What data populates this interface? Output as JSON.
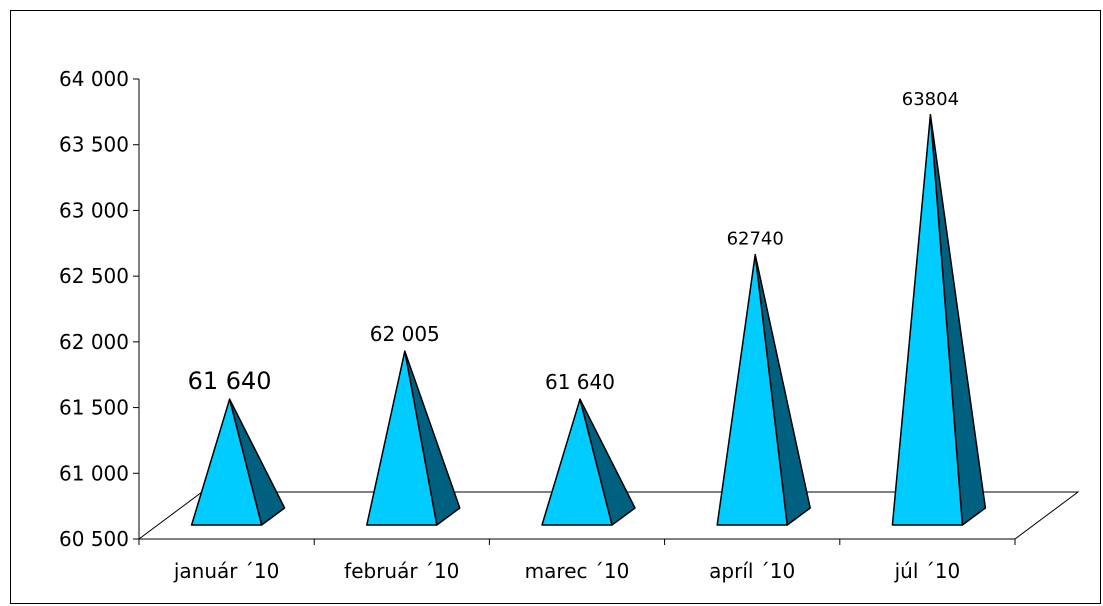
{
  "chart_data": {
    "type": "bar",
    "bar_shape": "pyramid-3d",
    "categories": [
      "január ´10",
      "február ´10",
      "marec ´10",
      "apríl ´10",
      "júl ´10"
    ],
    "values": [
      61640,
      62005,
      61640,
      62740,
      63804
    ],
    "data_labels": [
      "61 640",
      "62 005",
      "61 640",
      "62740",
      "63804"
    ],
    "y_ticks": [
      "60 500",
      "61 000",
      "61 500",
      "62 000",
      "62 500",
      "63 000",
      "63 500",
      "64 000"
    ],
    "ylim": [
      60500,
      64000
    ],
    "title": "",
    "xlabel": "",
    "ylabel": "",
    "grid": false,
    "legend": false,
    "colors": {
      "front": "#00ccff",
      "side": "#006080",
      "outline": "#000000"
    }
  }
}
